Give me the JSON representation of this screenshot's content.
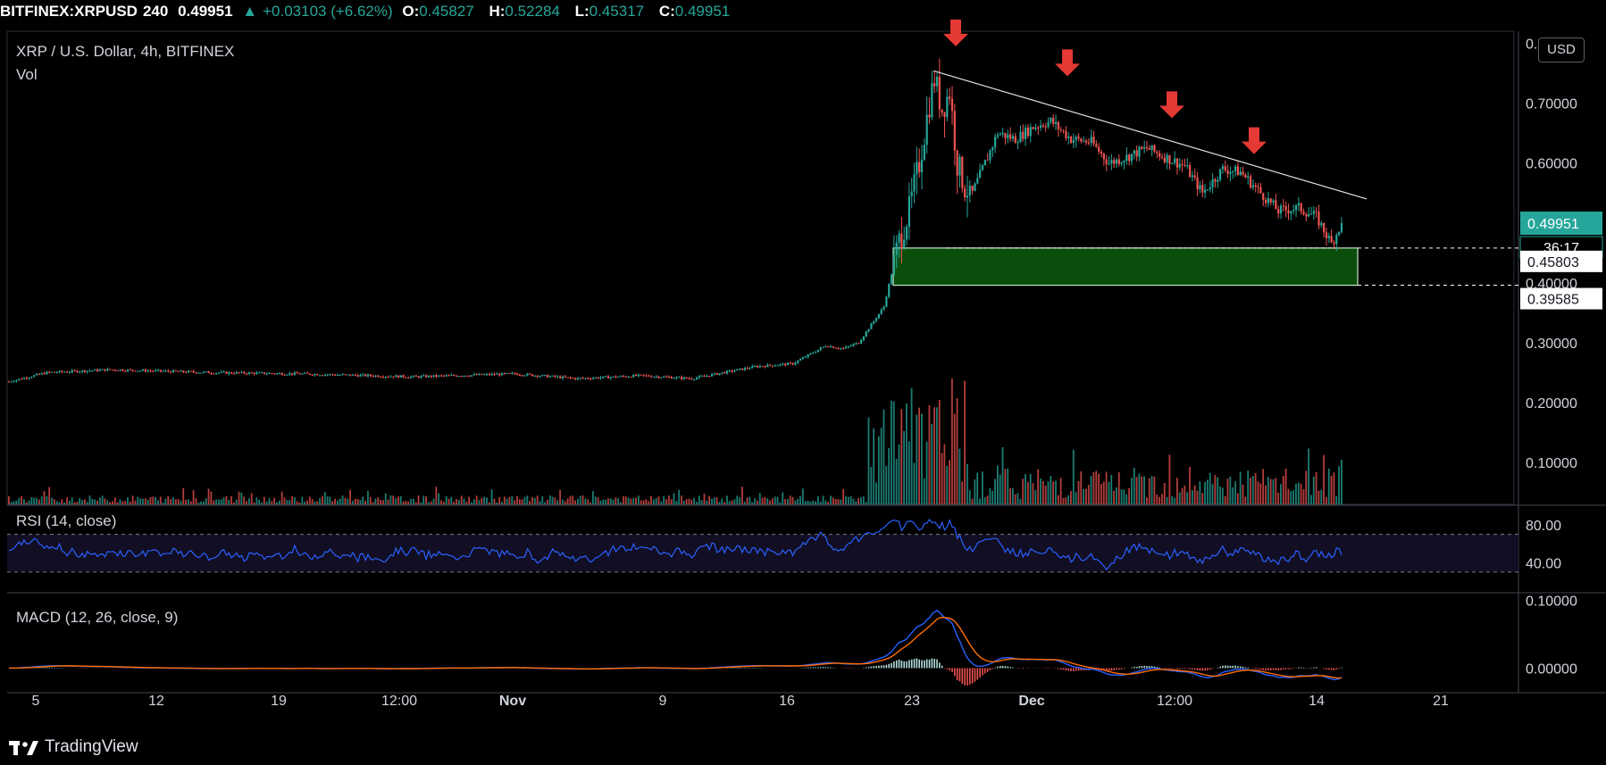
{
  "header": {
    "symbol": "BITFINEX:XRPUSD",
    "interval": "240",
    "last": "0.49951",
    "change": "+0.03103 (+6.62%)",
    "open_label": "O:",
    "open": "0.45827",
    "high_label": "H:",
    "high": "0.52284",
    "low_label": "L:",
    "low": "0.45317",
    "close_label": "C:",
    "close": "0.49951",
    "change_icon": "triangle-up-icon"
  },
  "main_pane": {
    "title": "XRP / U.S. Dollar, 4h, BITFINEX",
    "vol_label": "Vol",
    "currency_button": "USD"
  },
  "rsi_pane": {
    "title": "RSI (14, close)"
  },
  "macd_pane": {
    "title": "MACD (12, 26, close, 9)"
  },
  "footer": {
    "brand": "TradingView",
    "logo_icon": "tradingview-logo-icon"
  },
  "colors": {
    "up": "#26a69a",
    "down": "#ef5350",
    "rsi": "#2962ff",
    "macd": "#2962ff",
    "signal": "#ff6d00",
    "zone": "#0b4d0b",
    "arrow": "#e53935",
    "trendline": "#e0e0e0"
  },
  "chart_data": [
    {
      "type": "candlestick",
      "title": "XRP / U.S. Dollar, 4h, BITFINEX",
      "x_tick_labels": [
        "5",
        "12",
        "19",
        "12:00",
        "Nov",
        "9",
        "16",
        "23",
        "Dec",
        "12:00",
        "14",
        "21"
      ],
      "y_ticks": [
        0.1,
        0.2,
        0.3,
        0.4,
        0.5,
        0.6,
        0.7,
        0.8
      ],
      "y_tick_labels": [
        "0.10000",
        "0.20000",
        "0.30000",
        "0.40000",
        "0.50000",
        "0.60000",
        "0.70000",
        "0.80000"
      ],
      "ylim": [
        0.03,
        0.82
      ],
      "price_path": [
        [
          0,
          0.235
        ],
        [
          15,
          0.25
        ],
        [
          40,
          0.255
        ],
        [
          80,
          0.25
        ],
        [
          115,
          0.248
        ],
        [
          160,
          0.243
        ],
        [
          200,
          0.248
        ],
        [
          225,
          0.24
        ],
        [
          250,
          0.245
        ],
        [
          270,
          0.24
        ],
        [
          295,
          0.26
        ],
        [
          310,
          0.265
        ],
        [
          323,
          0.295
        ],
        [
          330,
          0.29
        ],
        [
          336,
          0.3
        ],
        [
          346,
          0.36
        ],
        [
          352,
          0.47
        ],
        [
          356,
          0.52
        ],
        [
          360,
          0.6
        ],
        [
          364,
          0.7
        ],
        [
          366,
          0.74
        ],
        [
          369,
          0.69
        ],
        [
          372,
          0.72
        ],
        [
          375,
          0.6
        ],
        [
          378,
          0.56
        ],
        [
          381,
          0.55
        ],
        [
          386,
          0.6
        ],
        [
          391,
          0.65
        ],
        [
          398,
          0.64
        ],
        [
          405,
          0.66
        ],
        [
          412,
          0.67
        ],
        [
          420,
          0.64
        ],
        [
          428,
          0.635
        ],
        [
          435,
          0.6
        ],
        [
          442,
          0.61
        ],
        [
          450,
          0.625
        ],
        [
          457,
          0.61
        ],
        [
          465,
          0.595
        ],
        [
          472,
          0.55
        ],
        [
          480,
          0.59
        ],
        [
          487,
          0.585
        ],
        [
          495,
          0.55
        ],
        [
          502,
          0.52
        ],
        [
          510,
          0.525
        ],
        [
          517,
          0.51
        ],
        [
          523,
          0.465
        ],
        [
          527,
          0.49951
        ]
      ],
      "last_price": 0.49951,
      "last_price_label": "0.49951",
      "countdown": "36:17",
      "support_zone": {
        "top": 0.45803,
        "bottom": 0.39585,
        "top_label": "0.45803",
        "bottom_label": "0.39585"
      },
      "resistance_trendline": [
        [
          0.754,
          0.76
        ],
        [
          0.54,
          0.54
        ]
      ],
      "sell_arrows": [
        0.78,
        0.73,
        0.66,
        0.6
      ]
    },
    {
      "type": "bar",
      "name": "Vol",
      "note": "volume bars, no scale shown; spikes around 23 Nov and after"
    },
    {
      "type": "line",
      "title": "RSI (14, close)",
      "y_tick_labels": [
        "80.00",
        "40.00"
      ],
      "y_ticks": [
        80,
        40
      ],
      "ylim": [
        10,
        100
      ],
      "bands": [
        70,
        30
      ],
      "last_value": 48
    },
    {
      "type": "line",
      "title": "MACD (12, 26, close, 9)",
      "y_tick_labels": [
        "0.10000",
        "0.00000"
      ],
      "y_ticks": [
        0.1,
        0.0
      ],
      "ylim": [
        -0.035,
        0.11
      ],
      "peak_macd": 0.085,
      "peak_signal": 0.077
    }
  ]
}
